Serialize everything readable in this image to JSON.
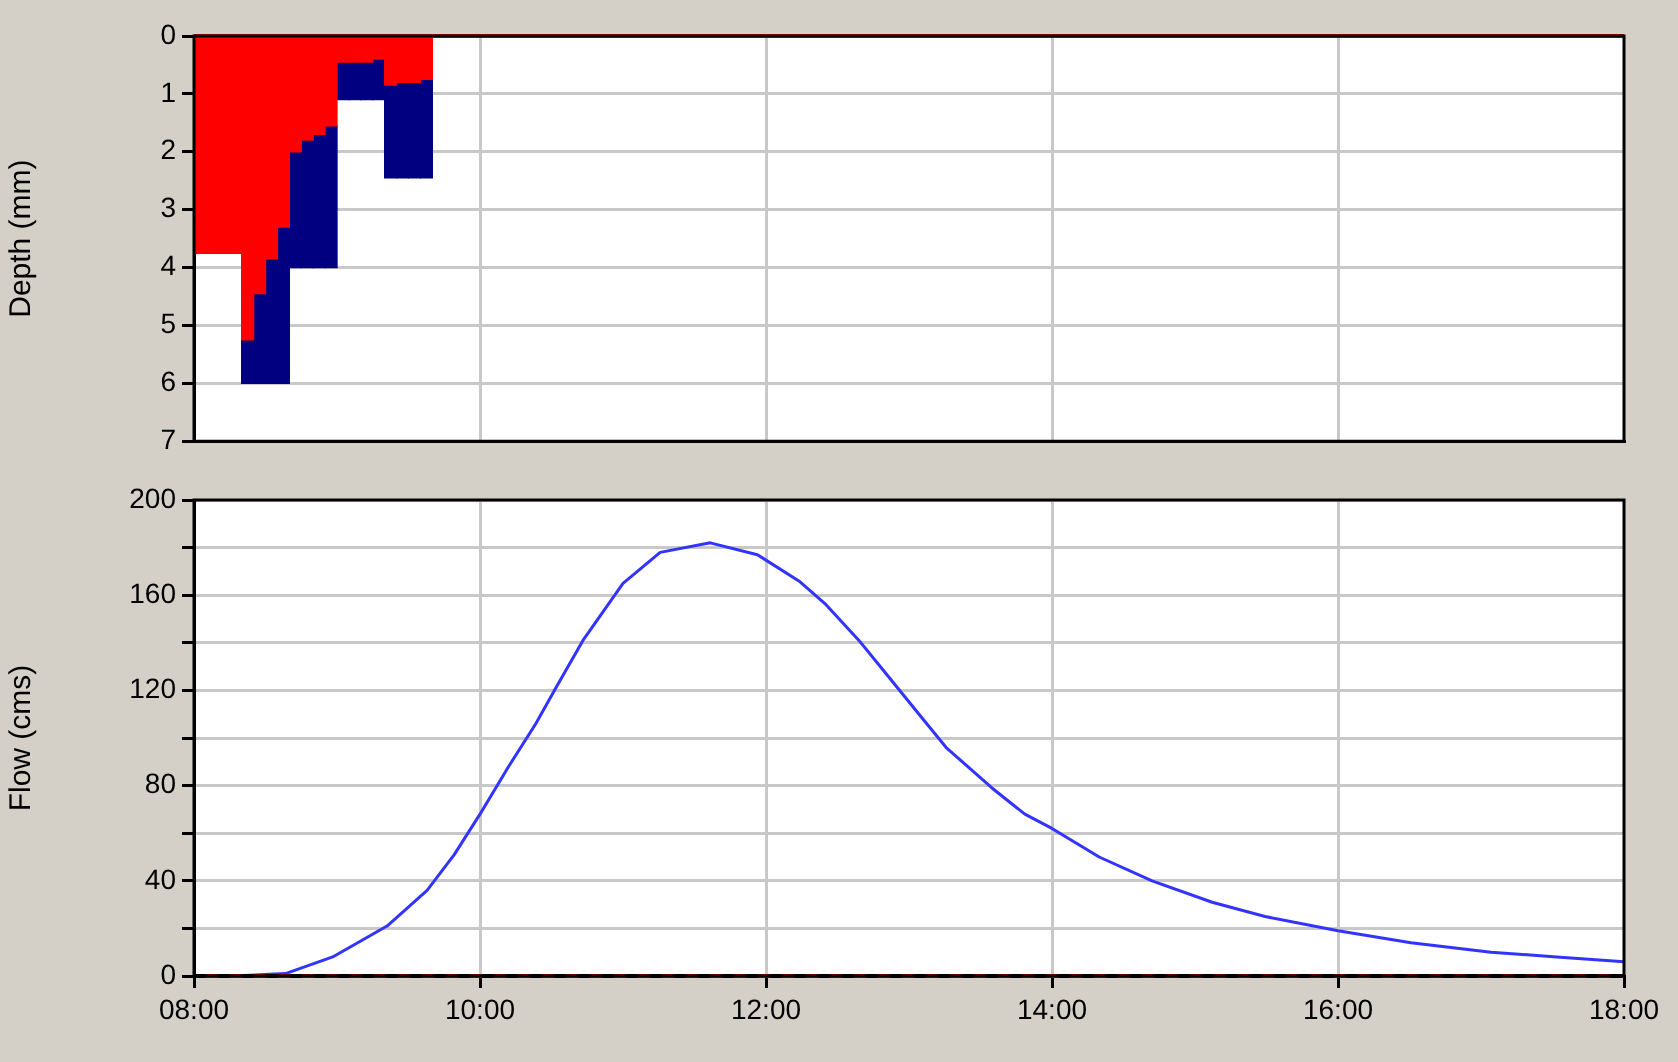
{
  "chart_data": [
    {
      "type": "bar",
      "stacked": true,
      "ylabel": "Depth (mm)",
      "x": [
        8.0417,
        8.125,
        8.2083,
        8.2917,
        8.375,
        8.4583,
        8.5417,
        8.625,
        8.7083,
        8.7917,
        8.875,
        8.9583,
        9.0417,
        9.125,
        9.2083,
        9.2917,
        9.375,
        9.4583,
        9.5417,
        9.625
      ],
      "series": [
        {
          "color": "#ff0000",
          "values": [
            3.75,
            3.75,
            3.75,
            3.75,
            5.25,
            4.45,
            3.85,
            3.3,
            2.0,
            1.8,
            1.7,
            1.55,
            0.45,
            0.45,
            0.45,
            0.4,
            0.85,
            0.8,
            0.8,
            0.75
          ]
        },
        {
          "color": "#000080",
          "values": [
            0,
            0,
            0,
            0,
            0.75,
            1.55,
            2.15,
            2.7,
            2.0,
            2.2,
            2.3,
            2.45,
            0.65,
            0.65,
            0.65,
            0.7,
            1.6,
            1.65,
            1.65,
            1.7
          ]
        }
      ],
      "xlim": [
        8,
        18
      ],
      "xticks": [
        {
          "value": 8,
          "label": null
        },
        {
          "value": 10,
          "label": null
        },
        {
          "value": 12,
          "label": null
        },
        {
          "value": 14,
          "label": null
        },
        {
          "value": 16,
          "label": null
        },
        {
          "value": 18,
          "label": null
        }
      ],
      "ylim": [
        7,
        0
      ],
      "yticks": [
        0,
        1,
        2,
        3,
        4,
        5,
        6,
        7
      ],
      "grid": true,
      "legend": false,
      "tick_labels": "y",
      "ref_lines": [
        {
          "axis": "y",
          "value": 0,
          "color": "#ff0000"
        }
      ]
    },
    {
      "type": "line",
      "ylabel": "Flow (cms)",
      "marker": "none",
      "line_style": "solid",
      "x": [
        8.27,
        8.64,
        8.97,
        9.35,
        9.63,
        9.82,
        10.0,
        10.2,
        10.39,
        10.53,
        10.72,
        11.0,
        11.26,
        11.61,
        11.94,
        12.23,
        12.42,
        12.65,
        12.84,
        13.07,
        13.26,
        13.58,
        13.81,
        14.0,
        14.33,
        14.7,
        15.12,
        15.49,
        16.0,
        16.51,
        17.07,
        17.53,
        18.0
      ],
      "series": [
        {
          "color": "#3333ff",
          "values": [
            0,
            1,
            8,
            21,
            36,
            51,
            68,
            88,
            106,
            121,
            141,
            165,
            178,
            182,
            177,
            166,
            156,
            141,
            127,
            110,
            96,
            79,
            68,
            62,
            50,
            40,
            31,
            25,
            19,
            14,
            10,
            8,
            6
          ]
        }
      ],
      "xlim": [
        8,
        18
      ],
      "xticks": [
        {
          "value": 8,
          "label": "08:00"
        },
        {
          "value": 10,
          "label": "10:00"
        },
        {
          "value": 12,
          "label": "12:00"
        },
        {
          "value": 14,
          "label": "14:00"
        },
        {
          "value": 16,
          "label": "16:00"
        },
        {
          "value": 18,
          "label": "18:00"
        }
      ],
      "ylim": [
        0,
        200
      ],
      "yticks": [
        0,
        {
          "value": 20,
          "label": null
        },
        40,
        {
          "value": 60,
          "label": null
        },
        80,
        {
          "value": 100,
          "label": null
        },
        120,
        {
          "value": 140,
          "label": null
        },
        160,
        {
          "value": 180,
          "label": null
        },
        200
      ],
      "grid": true,
      "legend": false,
      "ref_lines": [
        {
          "axis": "y",
          "value": 0,
          "color": "#c00000"
        },
        {
          "axis": "y",
          "value": 0,
          "color": "#000000",
          "line_style": "dashed"
        }
      ]
    }
  ]
}
